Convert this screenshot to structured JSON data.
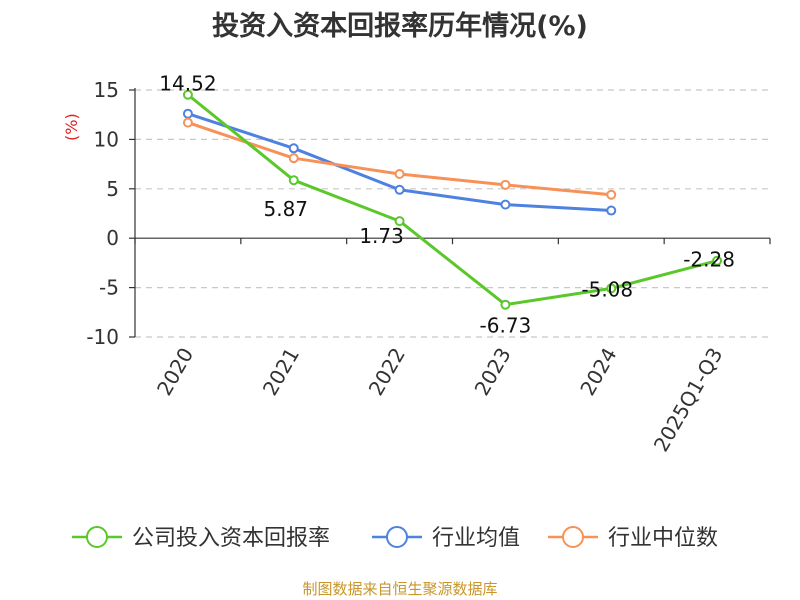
{
  "chart_data": {
    "type": "line",
    "title": "投资入资本回报率历年情况(%)",
    "ylabel": "(%)",
    "xlabel": "",
    "ylim": [
      -10,
      15
    ],
    "yticks": [
      "15",
      "10",
      "5",
      "0",
      "-5",
      "-10"
    ],
    "categories": [
      "2020",
      "2021",
      "2022",
      "2023",
      "2024",
      "2025Q1-Q3"
    ],
    "grid": true,
    "legend_position": "bottom",
    "series": [
      {
        "name": "公司投入资本回报率",
        "color": "#5ac72a",
        "values": [
          14.52,
          5.87,
          1.73,
          -6.73,
          -5.08,
          -2.28
        ],
        "labels": [
          "14.52",
          "5.87",
          "1.73",
          "-6.73",
          "-5.08",
          "-2.28"
        ]
      },
      {
        "name": "行业均值",
        "color": "#4f81e0",
        "values": [
          12.6,
          9.1,
          4.9,
          3.4,
          2.8,
          null
        ]
      },
      {
        "name": "行业中位数",
        "color": "#f79157",
        "values": [
          11.7,
          8.1,
          6.5,
          5.4,
          4.4,
          null
        ]
      }
    ]
  },
  "footer": {
    "source": "制图数据来自恒生聚源数据库"
  }
}
